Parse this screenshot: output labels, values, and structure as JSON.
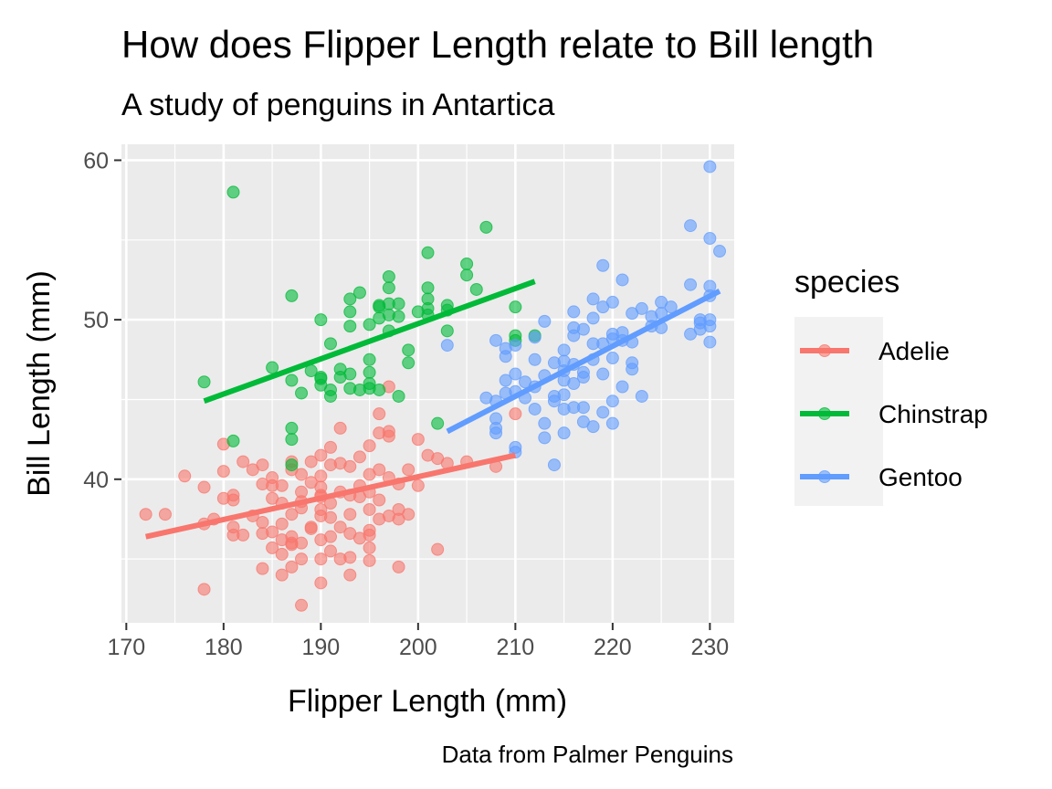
{
  "chart_data": {
    "type": "scatter",
    "title": "How does Flipper Length relate to Bill length",
    "subtitle": "A study of penguins in Antartica",
    "xlabel": "Flipper Length (mm)",
    "ylabel": "Bill Length (mm)",
    "caption": "Data from Palmer Penguins",
    "xlim": [
      169.5,
      232.5
    ],
    "ylim": [
      31,
      61
    ],
    "x_ticks": [
      170,
      180,
      190,
      200,
      210,
      220,
      230
    ],
    "y_ticks": [
      40,
      50,
      60
    ],
    "grid": true,
    "legend": {
      "title": "species",
      "position": "right"
    },
    "series": [
      {
        "name": "Adelie",
        "color": "#F8766D",
        "trend": {
          "x": [
            172,
            210
          ],
          "y": [
            36.4,
            41.5
          ]
        },
        "points": [
          [
            172,
            37.8
          ],
          [
            174,
            37.8
          ],
          [
            176,
            40.2
          ],
          [
            178,
            33.1
          ],
          [
            178,
            39.5
          ],
          [
            178,
            37.2
          ],
          [
            179,
            37.5
          ],
          [
            180,
            38.8
          ],
          [
            180,
            40.5
          ],
          [
            180,
            42.2
          ],
          [
            181,
            37.0
          ],
          [
            181,
            39.0
          ],
          [
            181,
            36.5
          ],
          [
            181,
            38.7
          ],
          [
            182,
            41.1
          ],
          [
            182,
            36.5
          ],
          [
            183,
            40.6
          ],
          [
            183,
            37.7
          ],
          [
            184,
            34.4
          ],
          [
            184,
            36.6
          ],
          [
            184,
            39.7
          ],
          [
            184,
            40.9
          ],
          [
            184,
            37.3
          ],
          [
            185,
            38.8
          ],
          [
            185,
            39.6
          ],
          [
            185,
            35.7
          ],
          [
            185,
            36.7
          ],
          [
            185,
            40.1
          ],
          [
            186,
            34.0
          ],
          [
            186,
            37.2
          ],
          [
            186,
            39.6
          ],
          [
            186,
            36.2
          ],
          [
            186,
            35.3
          ],
          [
            186,
            38.5
          ],
          [
            187,
            36.4
          ],
          [
            187,
            37.8
          ],
          [
            187,
            34.5
          ],
          [
            187,
            41.1
          ],
          [
            187,
            35.9
          ],
          [
            187,
            36.0
          ],
          [
            187,
            40.6
          ],
          [
            188,
            32.1
          ],
          [
            188,
            39.2
          ],
          [
            188,
            36.0
          ],
          [
            188,
            38.6
          ],
          [
            188,
            35.0
          ],
          [
            188,
            40.3
          ],
          [
            188,
            38.2
          ],
          [
            189,
            37.0
          ],
          [
            189,
            39.8
          ],
          [
            189,
            41.1
          ],
          [
            189,
            36.9
          ],
          [
            190,
            33.5
          ],
          [
            190,
            38.9
          ],
          [
            190,
            39.5
          ],
          [
            190,
            35.0
          ],
          [
            190,
            37.7
          ],
          [
            190,
            36.2
          ],
          [
            190,
            41.5
          ],
          [
            190,
            40.2
          ],
          [
            190,
            38.1
          ],
          [
            190,
            39.0
          ],
          [
            191,
            35.5
          ],
          [
            191,
            37.6
          ],
          [
            191,
            40.9
          ],
          [
            191,
            38.5
          ],
          [
            191,
            42.0
          ],
          [
            191,
            36.4
          ],
          [
            192,
            43.2
          ],
          [
            192,
            35.0
          ],
          [
            192,
            39.2
          ],
          [
            192,
            37.0
          ],
          [
            192,
            41.0
          ],
          [
            193,
            34.0
          ],
          [
            193,
            37.8
          ],
          [
            193,
            36.6
          ],
          [
            193,
            39.0
          ],
          [
            193,
            40.8
          ],
          [
            193,
            35.1
          ],
          [
            194,
            36.3
          ],
          [
            194,
            38.9
          ],
          [
            194,
            39.6
          ],
          [
            194,
            41.4
          ],
          [
            195,
            35.7
          ],
          [
            195,
            38.1
          ],
          [
            195,
            36.8
          ],
          [
            195,
            39.2
          ],
          [
            195,
            40.3
          ],
          [
            195,
            42.1
          ],
          [
            195,
            34.9
          ],
          [
            195,
            36.5
          ],
          [
            196,
            37.5
          ],
          [
            196,
            40.6
          ],
          [
            196,
            42.9
          ],
          [
            196,
            44.1
          ],
          [
            196,
            38.7
          ],
          [
            197,
            42.7
          ],
          [
            197,
            40.1
          ],
          [
            197,
            37.7
          ],
          [
            197,
            43.0
          ],
          [
            197,
            45.8
          ],
          [
            198,
            38.1
          ],
          [
            198,
            34.5
          ],
          [
            198,
            37.5
          ],
          [
            198,
            39.7
          ],
          [
            199,
            40.6
          ],
          [
            199,
            37.8
          ],
          [
            200,
            42.5
          ],
          [
            200,
            39.6
          ],
          [
            201,
            41.5
          ],
          [
            202,
            35.6
          ],
          [
            202,
            41.3
          ],
          [
            203,
            41.0
          ],
          [
            205,
            41.1
          ],
          [
            208,
            40.8
          ],
          [
            210,
            44.1
          ]
        ]
      },
      {
        "name": "Chinstrap",
        "color": "#00BA38",
        "trend": {
          "x": [
            178,
            212
          ],
          "y": [
            44.9,
            52.4
          ]
        },
        "points": [
          [
            178,
            46.1
          ],
          [
            181,
            58.0
          ],
          [
            181,
            42.4
          ],
          [
            185,
            47.0
          ],
          [
            187,
            51.5
          ],
          [
            187,
            46.2
          ],
          [
            187,
            42.5
          ],
          [
            187,
            43.2
          ],
          [
            187,
            40.9
          ],
          [
            188,
            45.4
          ],
          [
            189,
            46.8
          ],
          [
            190,
            50.0
          ],
          [
            190,
            46.3
          ],
          [
            190,
            45.9
          ],
          [
            190,
            46.4
          ],
          [
            191,
            48.5
          ],
          [
            191,
            45.2
          ],
          [
            191,
            45.6
          ],
          [
            192,
            46.9
          ],
          [
            192,
            46.4
          ],
          [
            193,
            50.5
          ],
          [
            193,
            51.3
          ],
          [
            193,
            49.6
          ],
          [
            193,
            46.6
          ],
          [
            193,
            45.7
          ],
          [
            194,
            51.7
          ],
          [
            194,
            45.6
          ],
          [
            195,
            49.7
          ],
          [
            195,
            47.5
          ],
          [
            195,
            46.7
          ],
          [
            195,
            45.7
          ],
          [
            195,
            46.0
          ],
          [
            196,
            50.9
          ],
          [
            196,
            50.8
          ],
          [
            196,
            50.1
          ],
          [
            196,
            45.6
          ],
          [
            197,
            52.7
          ],
          [
            197,
            52.0
          ],
          [
            197,
            49.3
          ],
          [
            197,
            51.0
          ],
          [
            197,
            50.3
          ],
          [
            198,
            51.0
          ],
          [
            198,
            50.2
          ],
          [
            198,
            45.2
          ],
          [
            199,
            48.1
          ],
          [
            199,
            47.3
          ],
          [
            200,
            50.5
          ],
          [
            201,
            54.2
          ],
          [
            201,
            51.3
          ],
          [
            201,
            50.3
          ],
          [
            201,
            50.7
          ],
          [
            201,
            52.0
          ],
          [
            202,
            43.5
          ],
          [
            203,
            50.6
          ],
          [
            203,
            49.3
          ],
          [
            203,
            50.9
          ],
          [
            205,
            52.8
          ],
          [
            205,
            53.5
          ],
          [
            206,
            51.9
          ],
          [
            207,
            55.8
          ],
          [
            210,
            50.8
          ],
          [
            210,
            48.7
          ],
          [
            210,
            49.0
          ],
          [
            212,
            49.0
          ]
        ]
      },
      {
        "name": "Gentoo",
        "color": "#619CFF",
        "trend": {
          "x": [
            203,
            231
          ],
          "y": [
            43.0,
            51.8
          ]
        },
        "points": [
          [
            203,
            48.4
          ],
          [
            207,
            45.1
          ],
          [
            208,
            43.8
          ],
          [
            208,
            48.7
          ],
          [
            208,
            44.9
          ],
          [
            208,
            42.9
          ],
          [
            208,
            43.2
          ],
          [
            209,
            48.2
          ],
          [
            209,
            46.2
          ],
          [
            209,
            47.7
          ],
          [
            209,
            45.4
          ],
          [
            210,
            48.4
          ],
          [
            210,
            46.6
          ],
          [
            210,
            45.5
          ],
          [
            210,
            41.7
          ],
          [
            210,
            42.0
          ],
          [
            211,
            46.1
          ],
          [
            211,
            45.1
          ],
          [
            212,
            47.5
          ],
          [
            212,
            48.9
          ],
          [
            212,
            45.8
          ],
          [
            212,
            44.4
          ],
          [
            213,
            49.9
          ],
          [
            213,
            46.5
          ],
          [
            213,
            43.5
          ],
          [
            213,
            42.6
          ],
          [
            214,
            47.3
          ],
          [
            214,
            45.2
          ],
          [
            214,
            44.9
          ],
          [
            214,
            40.9
          ],
          [
            215,
            47.4
          ],
          [
            215,
            45.3
          ],
          [
            215,
            46.2
          ],
          [
            215,
            48.1
          ],
          [
            215,
            44.4
          ],
          [
            215,
            42.9
          ],
          [
            215,
            46.8
          ],
          [
            216,
            50.5
          ],
          [
            216,
            49.5
          ],
          [
            216,
            47.2
          ],
          [
            216,
            44.5
          ],
          [
            216,
            49.0
          ],
          [
            216,
            46.0
          ],
          [
            217,
            49.4
          ],
          [
            217,
            46.7
          ],
          [
            217,
            46.4
          ],
          [
            217,
            43.6
          ],
          [
            217,
            44.5
          ],
          [
            218,
            51.3
          ],
          [
            218,
            50.1
          ],
          [
            218,
            48.5
          ],
          [
            218,
            47.5
          ],
          [
            218,
            43.3
          ],
          [
            219,
            50.8
          ],
          [
            219,
            53.4
          ],
          [
            219,
            48.5
          ],
          [
            219,
            46.6
          ],
          [
            219,
            44.2
          ],
          [
            220,
            51.1
          ],
          [
            220,
            48.8
          ],
          [
            220,
            49.1
          ],
          [
            220,
            47.6
          ],
          [
            220,
            43.5
          ],
          [
            220,
            44.9
          ],
          [
            221,
            52.5
          ],
          [
            221,
            49.2
          ],
          [
            221,
            48.7
          ],
          [
            221,
            45.8
          ],
          [
            222,
            50.4
          ],
          [
            222,
            48.6
          ],
          [
            222,
            47.3
          ],
          [
            222,
            46.9
          ],
          [
            223,
            45.2
          ],
          [
            223,
            50.7
          ],
          [
            224,
            49.6
          ],
          [
            224,
            50.2
          ],
          [
            225,
            51.1
          ],
          [
            225,
            50.4
          ],
          [
            225,
            49.5
          ],
          [
            226,
            50.8
          ],
          [
            228,
            55.9
          ],
          [
            228,
            52.2
          ],
          [
            228,
            49.1
          ],
          [
            229,
            49.8
          ],
          [
            229,
            50.0
          ],
          [
            229,
            49.4
          ],
          [
            230,
            59.6
          ],
          [
            230,
            55.1
          ],
          [
            230,
            52.1
          ],
          [
            230,
            51.5
          ],
          [
            230,
            50.0
          ],
          [
            230,
            49.6
          ],
          [
            230,
            48.6
          ],
          [
            231,
            54.3
          ]
        ]
      }
    ]
  }
}
